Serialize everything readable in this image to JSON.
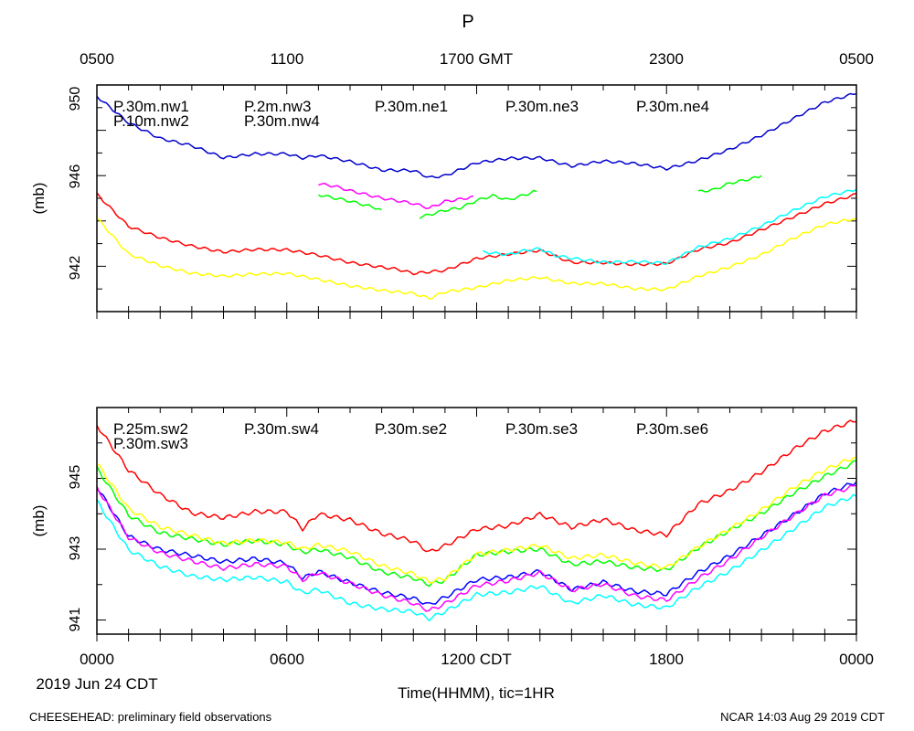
{
  "title": "P",
  "top_axis": {
    "ticks": [
      "0500",
      "1100",
      "1700 GMT",
      "2300",
      "0500"
    ]
  },
  "bottom_axis": {
    "ticks": [
      "0000",
      "0600",
      "1200 CDT",
      "1800",
      "0000"
    ],
    "date_label": "2019 Jun 24 CDT",
    "xlabel": "Time(HHMM), tic=1HR"
  },
  "footer": {
    "left": "CHEESEHEAD: preliminary field observations",
    "right": "NCAR 14:03 Aug 29 2019 CDT"
  },
  "chart_data": [
    {
      "type": "line",
      "name": "top",
      "ylabel": "(mb)",
      "xlim": [
        0,
        24
      ],
      "ylim": [
        940,
        950
      ],
      "yticks": [
        "950",
        "946",
        "942"
      ],
      "ytick_values": [
        950,
        946,
        942
      ],
      "x_unit": "hours since 0000 CDT",
      "legend": [
        {
          "label": "P.30m.nw1",
          "color": "#ff0000"
        },
        {
          "label": "P.2m.nw3",
          "color": "#0000ff"
        },
        {
          "label": "P.30m.ne1",
          "color": "#ff00ff"
        },
        {
          "label": "P.30m.ne3",
          "color": "#ffff00"
        },
        {
          "label": "P.30m.ne4",
          "color": "#ffa500"
        },
        {
          "label": "P.10m.nw2",
          "color": "#00ff00"
        },
        {
          "label": "P.30m.nw4",
          "color": "#00ffff"
        }
      ],
      "series": [
        {
          "name": "P.2m.nw3",
          "color": "#0000cc",
          "x": [
            0,
            1,
            2,
            3,
            4,
            5,
            6,
            6.5,
            7,
            8,
            9,
            10,
            10.5,
            11,
            12,
            13,
            14,
            15,
            16,
            17,
            18,
            19,
            20,
            21,
            22,
            23,
            24
          ],
          "y": [
            949.5,
            948.3,
            947.6,
            947.3,
            946.8,
            947.0,
            947.0,
            946.8,
            946.9,
            946.6,
            946.2,
            946.2,
            945.9,
            946.0,
            946.6,
            946.8,
            946.8,
            946.4,
            946.6,
            946.5,
            946.3,
            946.7,
            947.2,
            947.8,
            948.5,
            949.2,
            949.6
          ]
        },
        {
          "name": "P.30m.nw1",
          "color": "#ff0000",
          "x": [
            0,
            1,
            2,
            3,
            4,
            5,
            6,
            7,
            8,
            9,
            9.5,
            10,
            11,
            12,
            13,
            14,
            15,
            16,
            17,
            18,
            19,
            20,
            21,
            22,
            23,
            24
          ],
          "y": [
            945.2,
            943.8,
            943.3,
            942.9,
            942.6,
            942.7,
            942.7,
            942.5,
            942.2,
            942.0,
            941.9,
            941.7,
            941.8,
            942.3,
            942.5,
            942.7,
            942.2,
            942.2,
            942.1,
            942.1,
            942.7,
            943.0,
            943.6,
            944.2,
            944.8,
            945.2
          ]
        },
        {
          "name": "P.30m.ne3",
          "color": "#ffff00",
          "x": [
            0,
            1,
            2,
            3,
            4,
            5,
            6,
            7,
            8,
            9,
            10,
            10.5,
            11,
            12,
            13,
            14,
            15,
            16,
            17,
            18,
            19,
            20,
            21,
            22,
            23,
            24
          ],
          "y": [
            944.1,
            942.5,
            942.0,
            941.7,
            941.6,
            941.7,
            941.7,
            941.4,
            941.1,
            940.9,
            940.8,
            940.6,
            940.9,
            941.1,
            941.4,
            941.5,
            941.2,
            941.2,
            941.0,
            941.0,
            941.6,
            942.0,
            942.5,
            943.2,
            943.8,
            944.1
          ]
        },
        {
          "name": "P.30m.nw4",
          "color": "#00ffff",
          "x": [
            12.2,
            13,
            13.5,
            14,
            14.5,
            15,
            16,
            17,
            18,
            19,
            20,
            21,
            22,
            23,
            24
          ],
          "y": [
            942.6,
            942.5,
            942.7,
            942.8,
            942.5,
            942.4,
            942.2,
            942.2,
            942.1,
            942.8,
            943.2,
            943.8,
            944.5,
            945.1,
            945.4
          ]
        },
        {
          "name": "P.30m.ne1",
          "color": "#ff00ff",
          "x": [
            7,
            7.5,
            8,
            9,
            10,
            10.5,
            11,
            11.5,
            11.9
          ],
          "y": [
            945.6,
            945.5,
            945.3,
            945.0,
            944.8,
            944.6,
            944.9,
            945.0,
            945.1
          ]
        },
        {
          "name": "P.10m.nw2",
          "color": "#00ff00",
          "x": [
            7,
            8,
            9
          ],
          "y": [
            945.2,
            944.9,
            944.5
          ]
        },
        {
          "name": "P.10m.nw2",
          "color": "#00ff00",
          "x": [
            10.2,
            11,
            11.5,
            12,
            12.5,
            13,
            13.5,
            13.9
          ],
          "y": [
            944.2,
            944.5,
            944.6,
            944.9,
            945.1,
            944.9,
            945.1,
            945.3
          ]
        },
        {
          "name": "P.10m.nw2",
          "color": "#00ff00",
          "x": [
            19,
            19.5,
            20,
            21
          ],
          "y": [
            945.3,
            945.4,
            945.7,
            946.0
          ]
        }
      ]
    },
    {
      "type": "line",
      "name": "bottom",
      "ylabel": "(mb)",
      "xlim": [
        0,
        24
      ],
      "ylim": [
        940.6,
        947.0
      ],
      "yticks": [
        "945",
        "943",
        "941"
      ],
      "ytick_values": [
        945,
        943,
        941
      ],
      "x_unit": "hours since 0000 CDT",
      "legend": [
        {
          "label": "P.25m.sw2",
          "color": "#ff0000"
        },
        {
          "label": "P.30m.sw4",
          "color": "#0000ff"
        },
        {
          "label": "P.30m.se2",
          "color": "#00ffff"
        },
        {
          "label": "P.30m.se3",
          "color": "#ff00ff"
        },
        {
          "label": "P.30m.se6",
          "color": "#ffff00"
        },
        {
          "label": "P.30m.sw3",
          "color": "#00ff00"
        }
      ],
      "series": [
        {
          "name": "P.25m.sw2",
          "color": "#ff0000",
          "x": [
            0,
            1,
            2,
            3,
            4,
            5,
            6,
            6.5,
            7,
            8,
            9,
            10,
            10.5,
            11,
            12,
            13,
            14,
            15,
            16,
            17,
            18,
            19,
            20,
            21,
            22,
            23,
            24
          ],
          "y": [
            946.5,
            945.2,
            944.5,
            944.0,
            943.9,
            944.1,
            944.1,
            943.6,
            944.0,
            943.8,
            943.4,
            943.2,
            942.9,
            943.1,
            943.6,
            943.7,
            944.0,
            943.6,
            943.8,
            943.5,
            943.4,
            944.3,
            944.7,
            945.2,
            945.8,
            946.3,
            946.6
          ]
        },
        {
          "name": "P.30m.sw3",
          "color": "#00ff00",
          "x": [
            0,
            1,
            2,
            3,
            4,
            5,
            6,
            6.5,
            7,
            8,
            9,
            10,
            10.5,
            11,
            12,
            13,
            14,
            15,
            16,
            17,
            18,
            19,
            20,
            21,
            22,
            23,
            24
          ],
          "y": [
            945.3,
            944.0,
            943.5,
            943.3,
            943.1,
            943.2,
            943.1,
            942.9,
            943.0,
            942.8,
            942.4,
            942.2,
            942.0,
            942.1,
            942.8,
            942.9,
            943.0,
            942.6,
            942.7,
            942.5,
            942.4,
            943.0,
            943.5,
            944.0,
            944.6,
            945.1,
            945.5
          ]
        },
        {
          "name": "P.30m.se6",
          "color": "#ffff00",
          "x": [
            0,
            1,
            2,
            3,
            4,
            5,
            6,
            6.5,
            7,
            8,
            9,
            10,
            10.5,
            11,
            12,
            13,
            14,
            15,
            16,
            17,
            18,
            19,
            20,
            21,
            22,
            23,
            24
          ],
          "y": [
            945.4,
            944.1,
            943.6,
            943.4,
            943.2,
            943.3,
            943.2,
            943.0,
            943.1,
            942.9,
            942.5,
            942.3,
            942.1,
            942.2,
            942.9,
            943.0,
            943.1,
            942.7,
            942.8,
            942.6,
            942.5,
            943.1,
            943.6,
            944.1,
            944.7,
            945.2,
            945.6
          ]
        },
        {
          "name": "P.30m.sw4",
          "color": "#0000ff",
          "x": [
            0,
            1,
            2,
            3,
            4,
            5,
            6,
            6.5,
            7,
            8,
            9,
            10,
            10.5,
            11,
            12,
            13,
            14,
            15,
            16,
            17,
            18,
            19,
            20,
            21,
            22,
            23,
            24
          ],
          "y": [
            944.8,
            943.4,
            943.0,
            942.8,
            942.6,
            942.7,
            942.6,
            942.2,
            942.4,
            942.1,
            941.8,
            941.6,
            941.4,
            941.6,
            942.1,
            942.2,
            942.4,
            941.9,
            942.1,
            941.8,
            941.7,
            942.3,
            942.8,
            943.4,
            944.0,
            944.6,
            944.9
          ]
        },
        {
          "name": "P.30m.se3",
          "color": "#ff00ff",
          "x": [
            0,
            1,
            2,
            3,
            4,
            5,
            6,
            6.5,
            7,
            8,
            9,
            10,
            10.5,
            11,
            12,
            13,
            14,
            15,
            16,
            17,
            18,
            19,
            20,
            21,
            22,
            23,
            24
          ],
          "y": [
            944.7,
            943.3,
            942.9,
            942.7,
            942.5,
            942.6,
            942.5,
            942.1,
            942.3,
            942.0,
            941.7,
            941.5,
            941.3,
            941.5,
            942.0,
            942.1,
            942.3,
            941.8,
            942.0,
            941.7,
            941.6,
            942.2,
            942.7,
            943.3,
            943.9,
            944.5,
            944.8
          ]
        },
        {
          "name": "P.30m.se2",
          "color": "#00ffff",
          "x": [
            0,
            1,
            2,
            3,
            4,
            5,
            6,
            6.5,
            7,
            8,
            9,
            10,
            10.5,
            11,
            12,
            13,
            14,
            15,
            16,
            17,
            18,
            19,
            20,
            21,
            22,
            23,
            24
          ],
          "y": [
            944.4,
            943.0,
            942.5,
            942.2,
            942.1,
            942.2,
            942.1,
            941.8,
            941.9,
            941.5,
            941.3,
            941.2,
            941.0,
            941.2,
            941.7,
            941.8,
            942.0,
            941.5,
            941.7,
            941.4,
            941.3,
            941.9,
            942.4,
            943.0,
            943.6,
            944.2,
            944.5
          ]
        }
      ]
    }
  ]
}
